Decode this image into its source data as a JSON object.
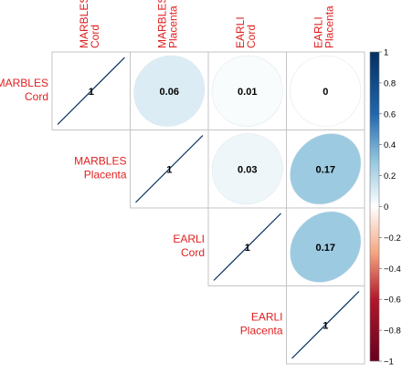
{
  "chart_data": {
    "type": "heatmap",
    "variant": "correlation-plot-upper-ellipse",
    "row_labels": [
      [
        "MARBLES",
        "Cord"
      ],
      [
        "MARBLES",
        "Placenta"
      ],
      [
        "EARLI",
        "Cord"
      ],
      [
        "EARLI",
        "Placenta"
      ]
    ],
    "col_labels": [
      [
        "MARBLES",
        "Cord"
      ],
      [
        "MARBLES",
        "Placenta"
      ],
      [
        "EARLI",
        "Cord"
      ],
      [
        "EARLI",
        "Placenta"
      ]
    ],
    "matrix": [
      [
        1,
        0.06,
        0.01,
        0
      ],
      [
        null,
        1,
        0.03,
        0.17
      ],
      [
        null,
        null,
        1,
        0.17
      ],
      [
        null,
        null,
        null,
        1
      ]
    ],
    "cell_text": [
      [
        "1",
        "0.06",
        "0.01",
        "0"
      ],
      [
        "",
        "1",
        "0.03",
        "0.17"
      ],
      [
        "",
        "",
        "1",
        "0.17"
      ],
      [
        "",
        "",
        "",
        "1"
      ]
    ],
    "colorbar": {
      "range": [
        -1,
        1
      ],
      "ticks": [
        "1",
        "0.8",
        "0.6",
        "0.4",
        "0.2",
        "0",
        "−0.2",
        "−0.4",
        "−0.6",
        "−0.8",
        "−1"
      ],
      "colors": {
        "negative": "#67001f",
        "zero": "#ffffff",
        "positive": "#053061"
      }
    },
    "label_color": "#e02020"
  }
}
